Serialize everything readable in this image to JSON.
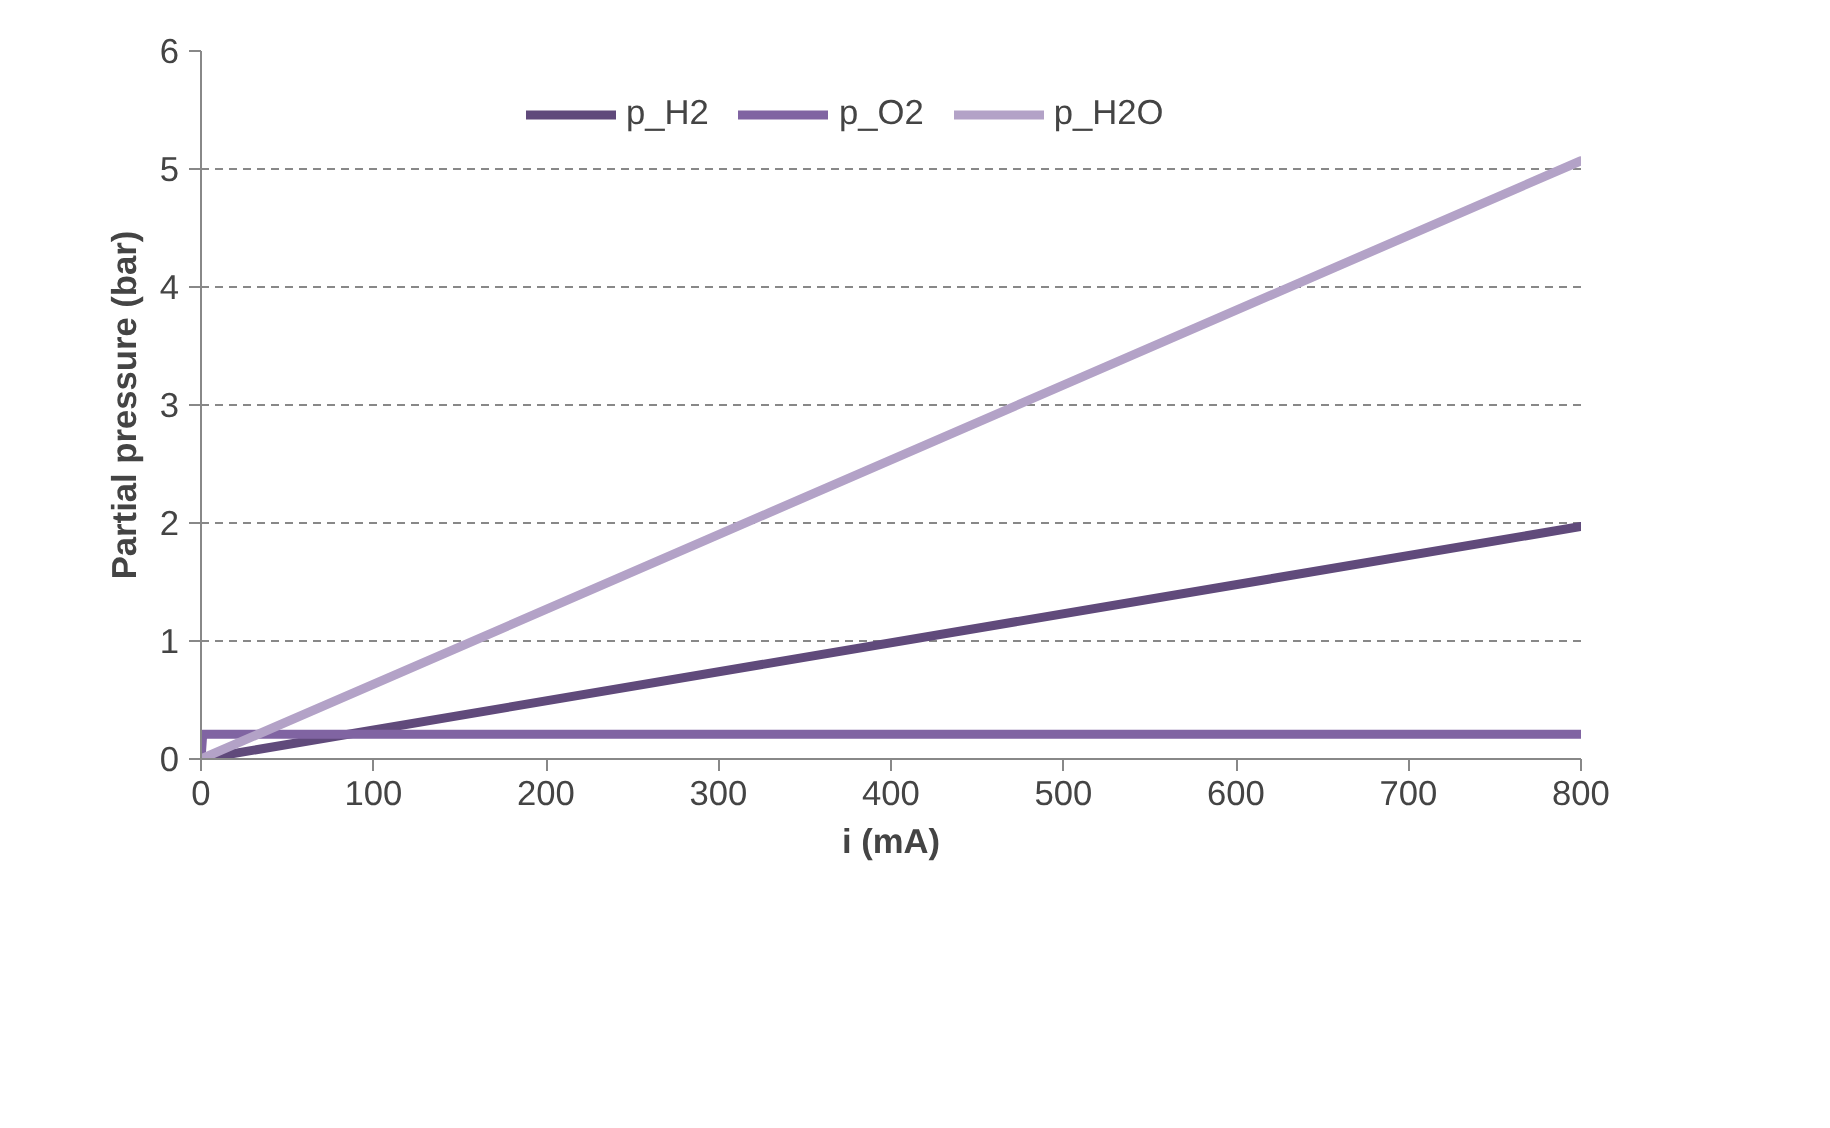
{
  "chart_data": {
    "type": "line",
    "xlabel": "i (mA)",
    "ylabel": "Partial pressure (bar)",
    "series": [
      {
        "name": "p_H2",
        "color": "#604a7b",
        "x": [
          0,
          800
        ],
        "values": [
          0,
          1.97
        ]
      },
      {
        "name": "p_O2",
        "color": "#8064a2",
        "x": [
          0,
          1,
          800
        ],
        "values": [
          0,
          0.21,
          0.21
        ]
      },
      {
        "name": "p_H2O",
        "color": "#b3a2c7",
        "x": [
          0,
          800
        ],
        "values": [
          0,
          5.07
        ]
      }
    ],
    "xlim": [
      0,
      800
    ],
    "ylim": [
      0,
      6
    ],
    "xticks": [
      0,
      100,
      200,
      300,
      400,
      500,
      600,
      700,
      800
    ],
    "yticks": [
      0,
      1,
      2,
      3,
      4,
      5,
      6
    ],
    "grid": "y",
    "legend": "top",
    "marker": "none",
    "line_style": "solid"
  }
}
